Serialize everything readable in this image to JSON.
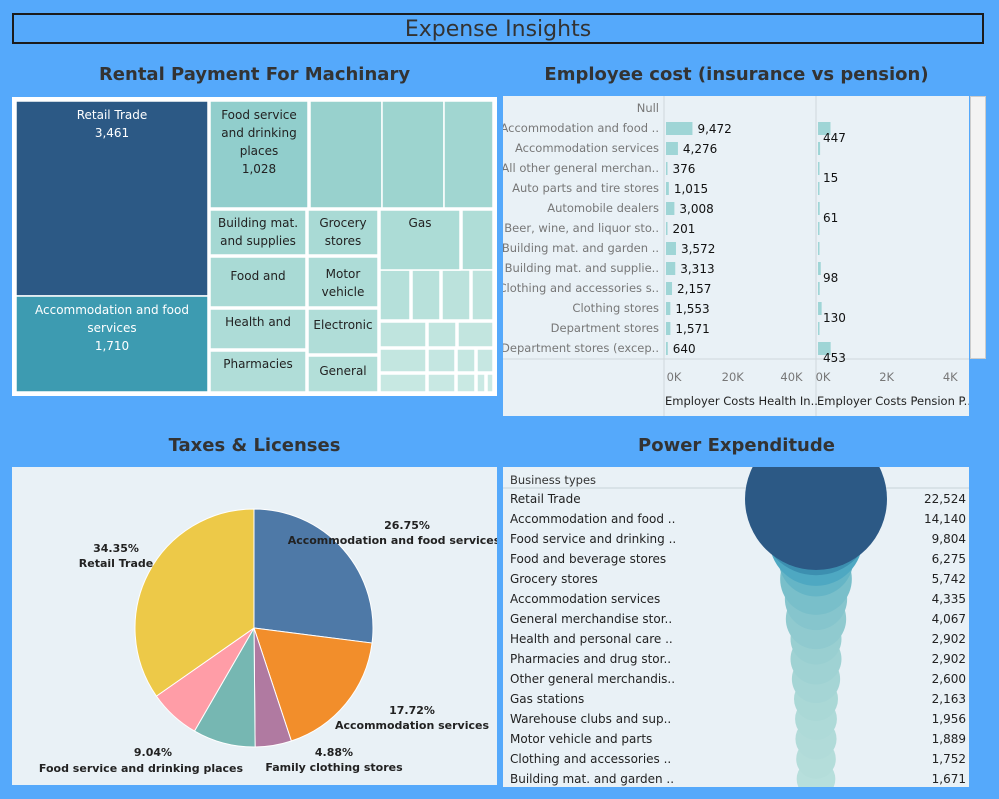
{
  "header": {
    "title": "Expense Insights"
  },
  "titles": {
    "rental": "Rental Payment For  Machinary",
    "employee": "Employee cost (insurance vs pension)",
    "taxes": "Taxes & Licenses",
    "power": "Power Expenditude"
  },
  "chart_data": [
    {
      "id": "rental",
      "type": "treemap",
      "title": "Rental Payment For  Machinary",
      "items": [
        {
          "label": "Retail Trade",
          "value": 3461,
          "value_label": "3,461",
          "color": "#2c5985"
        },
        {
          "label": "Accommodation and food services",
          "value": 1710,
          "value_label": "1,710",
          "color": "#3d9bb1"
        },
        {
          "label": "Food service and drinking places",
          "value": 1028,
          "value_label": "1,028",
          "color": "#91cecc"
        },
        {
          "label": "Building mat. and supplies",
          "color": "#a5d8d3"
        },
        {
          "label": "Grocery stores",
          "color": "#a9dad5"
        },
        {
          "label": "Gas",
          "color": "#acdcd6"
        },
        {
          "label": "Food and",
          "color": "#a9dad5"
        },
        {
          "label": "Motor vehicle",
          "color": "#add c d7"
        },
        {
          "label": "Health and",
          "color": "#addcd7"
        },
        {
          "label": "Electronic",
          "color": "#b0ddd8"
        },
        {
          "label": "Pharmacies",
          "color": "#b0ddd8"
        },
        {
          "label": "General",
          "color": "#b3dfd9"
        }
      ]
    },
    {
      "id": "employee",
      "type": "bar",
      "title": "Employee cost (insurance vs pension)",
      "categories": [
        "Null",
        "Accommodation and food ..",
        "Accommodation services",
        "All other general merchan..",
        "Auto parts and tire stores",
        "Automobile dealers",
        "Beer, wine, and liquor sto..",
        "Building mat. and garden ..",
        "Building mat. and supplie..",
        "Clothing and accessories s..",
        "Clothing stores",
        "Department stores",
        "Department stores (excep.."
      ],
      "series": [
        {
          "name": "Employer Costs Health In..",
          "values": [
            null,
            9472,
            4276,
            376,
            1015,
            3008,
            201,
            3572,
            3313,
            2157,
            1553,
            1571,
            640
          ],
          "labels": [
            "",
            "9,472",
            "4,276",
            "376",
            "1,015",
            "3,008",
            "201",
            "3,572",
            "3,313",
            "2,157",
            "1,553",
            "1,571",
            "640"
          ],
          "ticks": [
            "0K",
            "20K",
            "40K"
          ],
          "max": 48000
        },
        {
          "name": "Employer Costs Pension P..",
          "values": [
            null,
            447,
            75,
            15,
            12,
            61,
            10,
            35,
            98,
            60,
            130,
            40,
            453
          ],
          "labels": [
            "",
            "447",
            "",
            "15",
            "",
            "61",
            "",
            "",
            "98",
            "",
            "130",
            "",
            "453"
          ],
          "ticks": [
            "0K",
            "2K",
            "4K"
          ],
          "max": 4800
        }
      ],
      "color": "#9fd5d6"
    },
    {
      "id": "taxes",
      "type": "pie",
      "title": "Taxes & Licenses",
      "slices": [
        {
          "label": "Accommodation and food services",
          "pct": 26.75,
          "pct_label": "26.75%",
          "color": "#4e79a7"
        },
        {
          "label": "Accommodation services",
          "pct": 17.72,
          "pct_label": "17.72%",
          "color": "#f28e2b"
        },
        {
          "label": "Family clothing stores",
          "pct": 4.88,
          "pct_label": "4.88%",
          "color": "#b07aa1"
        },
        {
          "label": "",
          "pct": 8.4,
          "pct_label": "",
          "color": "#76b7b2"
        },
        {
          "label": "",
          "pct": 6.9,
          "pct_label": "",
          "color": "#ff9da7"
        },
        {
          "label": "Retail Trade",
          "pct": 34.35,
          "pct_label": "34.35%",
          "color": "#edc948"
        }
      ],
      "extra_label": {
        "label": "Food service and drinking places",
        "pct_label": "9.04%"
      }
    },
    {
      "id": "power",
      "type": "bubble",
      "title": "Power Expenditude",
      "header": "Business types",
      "rows": [
        {
          "label": "Retail Trade",
          "value": 22524,
          "value_label": "22,524"
        },
        {
          "label": "Accommodation and food ..",
          "value": 14140,
          "value_label": "14,140"
        },
        {
          "label": "Food service and drinking ..",
          "value": 9804,
          "value_label": "9,804"
        },
        {
          "label": "Food and beverage stores",
          "value": 6275,
          "value_label": "6,275"
        },
        {
          "label": "Grocery stores",
          "value": 5742,
          "value_label": "5,742"
        },
        {
          "label": "Accommodation services",
          "value": 4335,
          "value_label": "4,335"
        },
        {
          "label": "General merchandise stor..",
          "value": 4067,
          "value_label": "4,067"
        },
        {
          "label": "Health and personal care ..",
          "value": 2902,
          "value_label": "2,902"
        },
        {
          "label": "Pharmacies and drug stor..",
          "value": 2902,
          "value_label": "2,902"
        },
        {
          "label": "Other general merchandis..",
          "value": 2600,
          "value_label": "2,600"
        },
        {
          "label": "Gas stations",
          "value": 2163,
          "value_label": "2,163"
        },
        {
          "label": "Warehouse clubs and sup..",
          "value": 1956,
          "value_label": "1,956"
        },
        {
          "label": "Motor vehicle and parts",
          "value": 1889,
          "value_label": "1,889"
        },
        {
          "label": "Clothing and accessories ..",
          "value": 1752,
          "value_label": "1,752"
        },
        {
          "label": "Building mat. and garden ..",
          "value": 1671,
          "value_label": "1,671"
        }
      ]
    }
  ]
}
